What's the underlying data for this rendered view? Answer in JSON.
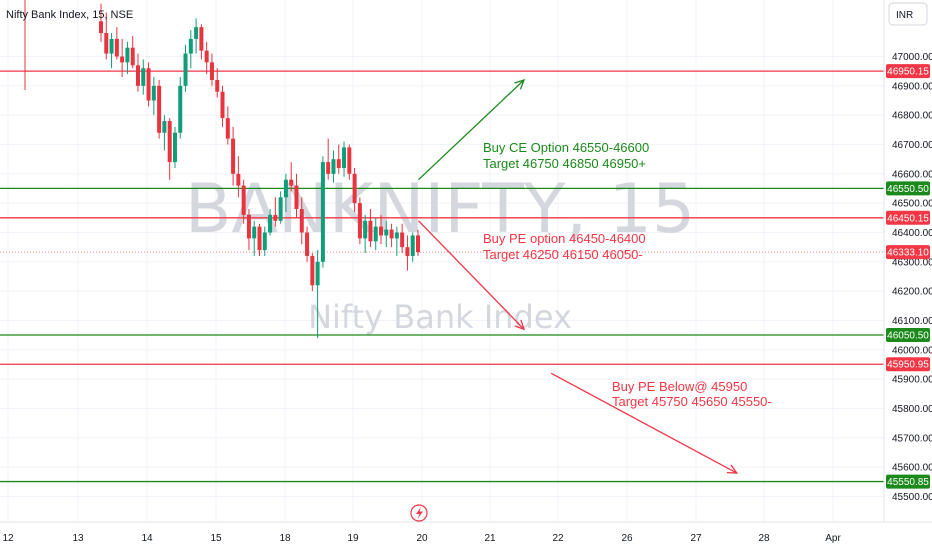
{
  "header": {
    "symbol_title": "Nifty Bank Index, 15, NSE",
    "currency_button": "INR"
  },
  "watermark": {
    "ticker": "BANKNIFTY, 15",
    "name": "Nifty Bank Index"
  },
  "colors": {
    "bull": "#089981",
    "bear": "#f23645",
    "green_line": "#1b8a1b",
    "red_line": "#f23645",
    "up_candle": "#0f9d7a",
    "down_candle": "#e8343f"
  },
  "icons": {
    "bottom_marker": "lightning-icon"
  },
  "chart_data": {
    "type": "candlestick",
    "y_axis": {
      "ylim": [
        45480,
        47060
      ],
      "ticks": [
        45500,
        45600,
        45700,
        45800,
        45900,
        46000,
        46100,
        46200,
        46300,
        46400,
        46500,
        46600,
        46700,
        46800,
        46900,
        47000
      ],
      "tick_labels": [
        "45500.00",
        "45600.00",
        "45700.00",
        "45800.00",
        "45900.00",
        "46000.00",
        "46100.00",
        "46200.00",
        "46300.00",
        "46400.00",
        "46500.00",
        "46600.00",
        "46700.00",
        "46800.00",
        "46900.00",
        "47000.00"
      ]
    },
    "x_axis": {
      "labels": [
        "12",
        "13",
        "14",
        "15",
        "18",
        "19",
        "20",
        "21",
        "22",
        "26",
        "27",
        "28",
        "Apr"
      ]
    },
    "horizontal_levels": [
      {
        "price": 46950.15,
        "label": "46950.15",
        "color": "red"
      },
      {
        "price": 46550.5,
        "label": "46550.50",
        "color": "green"
      },
      {
        "price": 46450.15,
        "label": "46450.15",
        "color": "red"
      },
      {
        "price": 46333.1,
        "label": "46333.10",
        "color": "red",
        "dotted": true
      },
      {
        "price": 46050.5,
        "label": "46050.50",
        "color": "green"
      },
      {
        "price": 45950.95,
        "label": "45950.95",
        "color": "red"
      },
      {
        "price": 45550.85,
        "label": "45550.85",
        "color": "green"
      }
    ],
    "annotations": [
      {
        "lines": [
          "Buy CE Option 46550-46600",
          "Target  46750 46850 46950+"
        ],
        "color": "green"
      },
      {
        "lines": [
          "Buy PE option 46450-46400",
          "Target 46250 46150 46050-"
        ],
        "color": "red"
      },
      {
        "lines": [
          "Buy PE Below@ 45950",
          "Target 45750 45650 45550-"
        ],
        "color": "red"
      }
    ],
    "arrows": [
      {
        "from": [
          46580,
          "19.8"
        ],
        "to": [
          46920,
          "21.5"
        ],
        "color": "green"
      },
      {
        "from": [
          46440,
          "19.8"
        ],
        "to": [
          46070,
          "21.5"
        ],
        "color": "red"
      },
      {
        "from": [
          45920,
          "22.2"
        ],
        "to": [
          45580,
          "27.5"
        ],
        "color": "red"
      }
    ],
    "candles": [
      [
        47120,
        47180,
        47050,
        47080
      ],
      [
        47080,
        47150,
        46990,
        47010
      ],
      [
        47010,
        47080,
        46960,
        47060
      ],
      [
        47060,
        47100,
        46990,
        47000
      ],
      [
        47000,
        47060,
        46930,
        46980
      ],
      [
        46980,
        47050,
        46940,
        47030
      ],
      [
        47030,
        47070,
        46960,
        46970
      ],
      [
        46970,
        47010,
        46880,
        46900
      ],
      [
        46900,
        46990,
        46870,
        46960
      ],
      [
        46960,
        46980,
        46830,
        46850
      ],
      [
        46850,
        46930,
        46800,
        46900
      ],
      [
        46900,
        46920,
        46720,
        46740
      ],
      [
        46740,
        46800,
        46680,
        46780
      ],
      [
        46780,
        46790,
        46580,
        46640
      ],
      [
        46640,
        46760,
        46620,
        46740
      ],
      [
        46740,
        46930,
        46720,
        46900
      ],
      [
        46900,
        47040,
        46880,
        47010
      ],
      [
        47010,
        47090,
        46960,
        47060
      ],
      [
        47060,
        47130,
        47010,
        47100
      ],
      [
        47100,
        47110,
        46990,
        47020
      ],
      [
        47020,
        47050,
        46940,
        46980
      ],
      [
        46980,
        47010,
        46900,
        46920
      ],
      [
        46920,
        46960,
        46860,
        46880
      ],
      [
        46880,
        46900,
        46760,
        46790
      ],
      [
        46790,
        46830,
        46700,
        46720
      ],
      [
        46720,
        46760,
        46560,
        46600
      ],
      [
        46600,
        46660,
        46520,
        46560
      ],
      [
        46560,
        46580,
        46430,
        46460
      ],
      [
        46460,
        46480,
        46340,
        46380
      ],
      [
        46380,
        46440,
        46320,
        46420
      ],
      [
        46420,
        46430,
        46320,
        46340
      ],
      [
        46340,
        46420,
        46320,
        46400
      ],
      [
        46400,
        46480,
        46390,
        46460
      ],
      [
        46460,
        46520,
        46420,
        46440
      ],
      [
        46440,
        46540,
        46430,
        46520
      ],
      [
        46520,
        46600,
        46470,
        46580
      ],
      [
        46580,
        46640,
        46540,
        46560
      ],
      [
        46560,
        46600,
        46450,
        46480
      ],
      [
        46480,
        46520,
        46360,
        46400
      ],
      [
        46400,
        46420,
        46300,
        46320
      ],
      [
        46320,
        46330,
        46200,
        46220
      ],
      [
        46220,
        46340,
        46040,
        46300
      ],
      [
        46300,
        46660,
        46280,
        46640
      ],
      [
        46640,
        46720,
        46580,
        46600
      ],
      [
        46600,
        46680,
        46570,
        46650
      ],
      [
        46650,
        46700,
        46600,
        46620
      ],
      [
        46620,
        46710,
        46590,
        46690
      ],
      [
        46690,
        46700,
        46580,
        46600
      ],
      [
        46600,
        46620,
        46470,
        46500
      ],
      [
        46500,
        46520,
        46360,
        46380
      ],
      [
        46380,
        46460,
        46330,
        46440
      ],
      [
        46440,
        46480,
        46350,
        46370
      ],
      [
        46370,
        46450,
        46340,
        46420
      ],
      [
        46420,
        46460,
        46360,
        46390
      ],
      [
        46390,
        46440,
        46350,
        46410
      ],
      [
        46410,
        46430,
        46350,
        46380
      ],
      [
        46380,
        46420,
        46320,
        46400
      ],
      [
        46400,
        46430,
        46330,
        46350
      ],
      [
        46350,
        46390,
        46270,
        46320
      ],
      [
        46320,
        46400,
        46300,
        46390
      ],
      [
        46390,
        46410,
        46320,
        46333
      ]
    ]
  }
}
